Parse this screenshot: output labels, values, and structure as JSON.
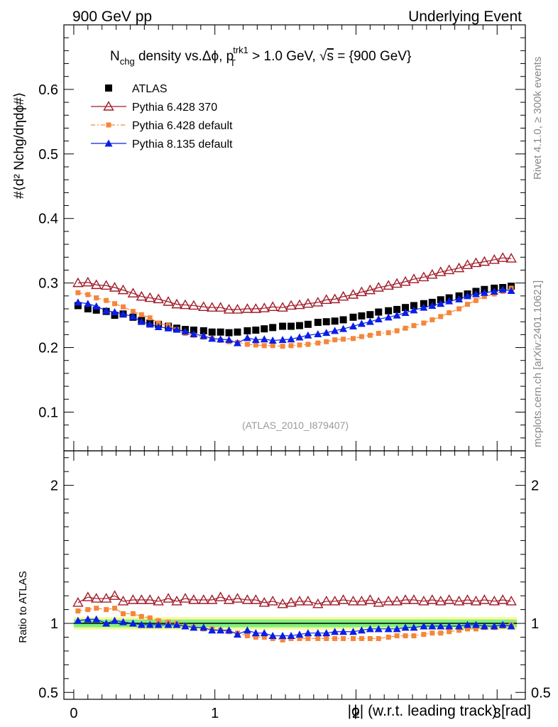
{
  "header": {
    "left": "900 GeV pp",
    "right": "Underlying Event"
  },
  "side_labels": {
    "rivet": "Rivet 4.1.0, ≥ 300k events",
    "mcplots": "mcplots.cern.ch [arXiv:2401.10621]"
  },
  "watermark": "(ATLAS_2010_I879407)",
  "colors": {
    "atlas": "#000000",
    "p6_370": "#a01a28",
    "p6_default": "#f5863a",
    "p8_default": "#0a1ee6",
    "band_inner": "#7ff07f",
    "band_outer": "#f8f89a"
  },
  "chart_data": [
    {
      "type": "scatter",
      "panel": "main",
      "title": "Nchg density vs. Δϕ, pT trk1 > 1.0 GeV, √s = {900 GeV}",
      "ylabel": "#⟨d² Nchg/dηdϕ#⟩",
      "xlim": [
        -0.07,
        3.2
      ],
      "ylim": [
        0.04,
        0.7
      ],
      "yticks": [
        0.1,
        0.2,
        0.3,
        0.4,
        0.5,
        0.6
      ],
      "ytick_labels": [
        "0.1",
        "0.2",
        "0.3",
        "0.4",
        "0.5",
        "0.6"
      ],
      "legend_position": "top-left",
      "series": [
        {
          "name": "ATLAS",
          "marker": "square",
          "x": [
            0.03,
            0.1,
            0.16,
            0.23,
            0.29,
            0.35,
            0.42,
            0.48,
            0.54,
            0.6,
            0.67,
            0.73,
            0.79,
            0.85,
            0.92,
            0.98,
            1.04,
            1.1,
            1.16,
            1.23,
            1.29,
            1.35,
            1.41,
            1.48,
            1.54,
            1.6,
            1.66,
            1.73,
            1.79,
            1.85,
            1.91,
            1.98,
            2.04,
            2.1,
            2.16,
            2.23,
            2.29,
            2.35,
            2.41,
            2.48,
            2.54,
            2.6,
            2.66,
            2.73,
            2.79,
            2.85,
            2.91,
            2.98,
            3.04,
            3.1
          ],
          "y": [
            0.265,
            0.26,
            0.258,
            0.256,
            0.25,
            0.252,
            0.247,
            0.242,
            0.238,
            0.236,
            0.233,
            0.23,
            0.228,
            0.227,
            0.226,
            0.224,
            0.224,
            0.223,
            0.224,
            0.226,
            0.227,
            0.229,
            0.231,
            0.233,
            0.233,
            0.234,
            0.236,
            0.239,
            0.24,
            0.241,
            0.243,
            0.247,
            0.249,
            0.251,
            0.255,
            0.257,
            0.259,
            0.262,
            0.265,
            0.268,
            0.27,
            0.274,
            0.277,
            0.28,
            0.283,
            0.287,
            0.29,
            0.292,
            0.293,
            0.295
          ]
        },
        {
          "name": "Pythia 6.428 370",
          "marker": "open-triangle",
          "x": [
            0.03,
            0.1,
            0.16,
            0.23,
            0.29,
            0.35,
            0.42,
            0.48,
            0.54,
            0.6,
            0.67,
            0.73,
            0.79,
            0.85,
            0.92,
            0.98,
            1.04,
            1.1,
            1.16,
            1.23,
            1.29,
            1.35,
            1.41,
            1.48,
            1.54,
            1.6,
            1.66,
            1.73,
            1.79,
            1.85,
            1.91,
            1.98,
            2.04,
            2.1,
            2.16,
            2.23,
            2.29,
            2.35,
            2.41,
            2.48,
            2.54,
            2.6,
            2.66,
            2.73,
            2.79,
            2.85,
            2.91,
            2.98,
            3.04,
            3.1
          ],
          "y": [
            0.3,
            0.301,
            0.297,
            0.296,
            0.293,
            0.289,
            0.284,
            0.279,
            0.277,
            0.275,
            0.271,
            0.267,
            0.266,
            0.265,
            0.263,
            0.262,
            0.262,
            0.259,
            0.259,
            0.26,
            0.26,
            0.261,
            0.263,
            0.262,
            0.265,
            0.266,
            0.268,
            0.27,
            0.274,
            0.275,
            0.279,
            0.282,
            0.286,
            0.289,
            0.293,
            0.296,
            0.299,
            0.302,
            0.306,
            0.309,
            0.313,
            0.317,
            0.32,
            0.323,
            0.328,
            0.331,
            0.333,
            0.336,
            0.339,
            0.338
          ]
        },
        {
          "name": "Pythia 6.428 default",
          "marker": "dashdot-square",
          "x": [
            0.03,
            0.1,
            0.16,
            0.23,
            0.29,
            0.35,
            0.42,
            0.48,
            0.54,
            0.6,
            0.67,
            0.73,
            0.79,
            0.85,
            0.92,
            0.98,
            1.04,
            1.1,
            1.16,
            1.23,
            1.29,
            1.35,
            1.41,
            1.48,
            1.54,
            1.6,
            1.66,
            1.73,
            1.79,
            1.85,
            1.91,
            1.98,
            2.04,
            2.1,
            2.16,
            2.23,
            2.29,
            2.35,
            2.41,
            2.48,
            2.54,
            2.6,
            2.66,
            2.73,
            2.79,
            2.85,
            2.91,
            2.98,
            3.04,
            3.1
          ],
          "y": [
            0.285,
            0.282,
            0.277,
            0.273,
            0.268,
            0.263,
            0.256,
            0.251,
            0.246,
            0.238,
            0.234,
            0.228,
            0.222,
            0.219,
            0.216,
            0.214,
            0.211,
            0.209,
            0.208,
            0.205,
            0.204,
            0.203,
            0.203,
            0.202,
            0.203,
            0.204,
            0.205,
            0.207,
            0.209,
            0.212,
            0.213,
            0.214,
            0.217,
            0.219,
            0.222,
            0.223,
            0.226,
            0.23,
            0.234,
            0.238,
            0.243,
            0.248,
            0.254,
            0.26,
            0.267,
            0.273,
            0.279,
            0.283,
            0.287,
            0.292
          ]
        },
        {
          "name": "Pythia 8.135 default",
          "marker": "filled-triangle",
          "x": [
            0.03,
            0.1,
            0.16,
            0.23,
            0.29,
            0.35,
            0.42,
            0.48,
            0.54,
            0.6,
            0.67,
            0.73,
            0.79,
            0.85,
            0.92,
            0.98,
            1.04,
            1.1,
            1.16,
            1.23,
            1.29,
            1.35,
            1.41,
            1.48,
            1.54,
            1.6,
            1.66,
            1.73,
            1.79,
            1.85,
            1.91,
            1.98,
            2.04,
            2.1,
            2.16,
            2.23,
            2.29,
            2.35,
            2.41,
            2.48,
            2.54,
            2.6,
            2.66,
            2.73,
            2.79,
            2.85,
            2.91,
            2.98,
            3.04,
            3.1
          ],
          "y": [
            0.27,
            0.268,
            0.264,
            0.257,
            0.255,
            0.252,
            0.248,
            0.24,
            0.236,
            0.232,
            0.23,
            0.228,
            0.225,
            0.221,
            0.218,
            0.214,
            0.213,
            0.212,
            0.207,
            0.215,
            0.212,
            0.213,
            0.211,
            0.212,
            0.213,
            0.216,
            0.219,
            0.221,
            0.223,
            0.226,
            0.229,
            0.233,
            0.237,
            0.24,
            0.244,
            0.247,
            0.25,
            0.254,
            0.258,
            0.262,
            0.265,
            0.268,
            0.272,
            0.275,
            0.28,
            0.283,
            0.285,
            0.287,
            0.29,
            0.288
          ]
        }
      ]
    },
    {
      "type": "scatter",
      "panel": "ratio",
      "ylabel": "Ratio to ATLAS",
      "xlabel": "|ϕ| (w.r.t. leading track) [rad]",
      "xlim": [
        -0.07,
        3.2
      ],
      "xticks": [
        0,
        1,
        2,
        3
      ],
      "xtick_labels": [
        "0",
        "1",
        "2",
        "3"
      ],
      "ylim": [
        0.45,
        2.25
      ],
      "yticks": [
        0.5,
        1,
        2
      ],
      "ytick_labels": [
        "0.5",
        "1",
        "2"
      ],
      "reference_line": 1.0,
      "band_inner": [
        0.972,
        1.028
      ],
      "band_outer": [
        0.955,
        1.045
      ],
      "series": [
        {
          "name": "Pythia 6.428 370",
          "marker": "open-triangle",
          "x": [
            0.03,
            0.1,
            0.16,
            0.23,
            0.29,
            0.35,
            0.42,
            0.48,
            0.54,
            0.6,
            0.67,
            0.73,
            0.79,
            0.85,
            0.92,
            0.98,
            1.04,
            1.1,
            1.16,
            1.23,
            1.29,
            1.35,
            1.41,
            1.48,
            1.54,
            1.6,
            1.66,
            1.73,
            1.79,
            1.85,
            1.91,
            1.98,
            2.04,
            2.1,
            2.16,
            2.23,
            2.29,
            2.35,
            2.41,
            2.48,
            2.54,
            2.6,
            2.66,
            2.73,
            2.79,
            2.85,
            2.91,
            2.98,
            3.04,
            3.1
          ],
          "y": [
            1.15,
            1.19,
            1.18,
            1.18,
            1.2,
            1.16,
            1.17,
            1.17,
            1.17,
            1.16,
            1.18,
            1.16,
            1.18,
            1.17,
            1.17,
            1.17,
            1.19,
            1.17,
            1.18,
            1.17,
            1.17,
            1.15,
            1.16,
            1.14,
            1.15,
            1.16,
            1.16,
            1.14,
            1.16,
            1.16,
            1.17,
            1.16,
            1.16,
            1.17,
            1.15,
            1.16,
            1.16,
            1.17,
            1.17,
            1.16,
            1.17,
            1.16,
            1.17,
            1.16,
            1.17,
            1.16,
            1.17,
            1.16,
            1.17,
            1.16
          ]
        },
        {
          "name": "Pythia 6.428 default",
          "marker": "dashdot-square",
          "x": [
            0.03,
            0.1,
            0.16,
            0.23,
            0.29,
            0.35,
            0.42,
            0.48,
            0.54,
            0.6,
            0.67,
            0.73,
            0.79,
            0.85,
            0.92,
            0.98,
            1.04,
            1.1,
            1.16,
            1.23,
            1.29,
            1.35,
            1.41,
            1.48,
            1.54,
            1.6,
            1.66,
            1.73,
            1.79,
            1.85,
            1.91,
            1.98,
            2.04,
            2.1,
            2.16,
            2.23,
            2.29,
            2.35,
            2.41,
            2.48,
            2.54,
            2.6,
            2.66,
            2.73,
            2.79,
            2.85,
            2.91,
            2.98,
            3.04,
            3.1
          ],
          "y": [
            1.09,
            1.1,
            1.11,
            1.1,
            1.11,
            1.07,
            1.07,
            1.05,
            1.04,
            1.02,
            1.01,
            1.0,
            0.98,
            0.97,
            0.96,
            0.96,
            0.95,
            0.94,
            0.93,
            0.91,
            0.9,
            0.9,
            0.89,
            0.88,
            0.89,
            0.89,
            0.89,
            0.89,
            0.89,
            0.89,
            0.89,
            0.89,
            0.89,
            0.89,
            0.89,
            0.9,
            0.91,
            0.91,
            0.91,
            0.92,
            0.93,
            0.93,
            0.94,
            0.95,
            0.96,
            0.96,
            0.97,
            0.97,
            0.98,
            0.99
          ]
        },
        {
          "name": "Pythia 8.135 default",
          "marker": "filled-triangle",
          "x": [
            0.03,
            0.1,
            0.16,
            0.23,
            0.29,
            0.35,
            0.42,
            0.48,
            0.54,
            0.6,
            0.67,
            0.73,
            0.79,
            0.85,
            0.92,
            0.98,
            1.04,
            1.1,
            1.16,
            1.23,
            1.29,
            1.35,
            1.41,
            1.48,
            1.54,
            1.6,
            1.66,
            1.73,
            1.79,
            1.85,
            1.91,
            1.98,
            2.04,
            2.1,
            2.16,
            2.23,
            2.29,
            2.35,
            2.41,
            2.48,
            2.54,
            2.6,
            2.66,
            2.73,
            2.79,
            2.85,
            2.91,
            2.98,
            3.04,
            3.1
          ],
          "y": [
            1.02,
            1.03,
            1.03,
            1.0,
            1.02,
            1.01,
            1.0,
            0.99,
            0.99,
            0.99,
            0.99,
            0.99,
            0.98,
            0.97,
            0.97,
            0.95,
            0.95,
            0.95,
            0.92,
            0.95,
            0.93,
            0.93,
            0.91,
            0.91,
            0.91,
            0.92,
            0.93,
            0.93,
            0.93,
            0.94,
            0.94,
            0.94,
            0.95,
            0.96,
            0.96,
            0.96,
            0.96,
            0.97,
            0.97,
            0.98,
            0.98,
            0.98,
            0.98,
            0.98,
            0.99,
            0.99,
            0.98,
            0.98,
            0.99,
            0.98
          ]
        }
      ]
    }
  ]
}
